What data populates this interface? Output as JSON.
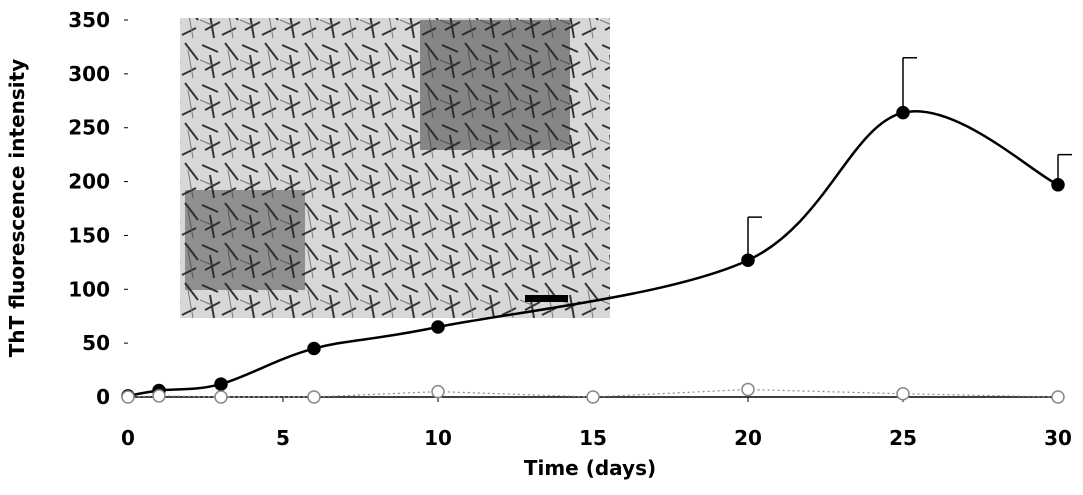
{
  "chart_data": {
    "type": "line",
    "xlabel": "Time (days)",
    "ylabel": "ThT fluorescence intensity",
    "xlim": [
      0,
      30
    ],
    "xticks": [
      0,
      5,
      10,
      15,
      20,
      25,
      30
    ],
    "ylim": [
      0,
      350
    ],
    "yticks": [
      0,
      50,
      100,
      150,
      200,
      250,
      300,
      350
    ],
    "series": [
      {
        "color": "#000000",
        "marker": "filled",
        "smooth": true,
        "x": [
          0,
          1,
          3,
          6,
          10,
          20,
          25,
          30
        ],
        "values": [
          1,
          6,
          12,
          45,
          65,
          127,
          264,
          197
        ],
        "errors": [
          null,
          null,
          null,
          null,
          null,
          40,
          51,
          28
        ]
      },
      {
        "color": "#888888",
        "marker": "open",
        "smooth": false,
        "x": [
          0,
          1,
          3,
          6,
          10,
          15,
          20,
          25,
          30
        ],
        "values": [
          0,
          1,
          0,
          0,
          5,
          0,
          7,
          3,
          0
        ]
      }
    ]
  }
}
